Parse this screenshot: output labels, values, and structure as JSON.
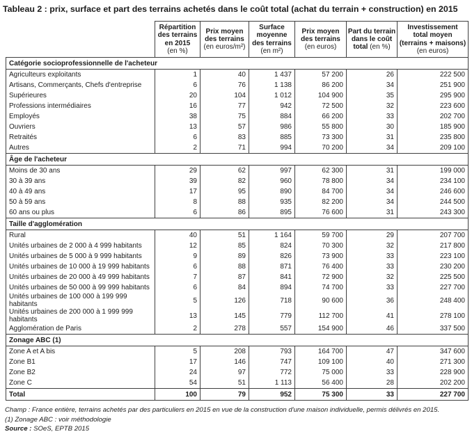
{
  "title": "Tableau 2 : prix, surface et part des terrains achetés dans le coût total (achat du terrain + construction) en 2015",
  "table": {
    "header": {
      "columns": [
        {
          "name": "repartition-terrains",
          "lines": [
            [
              {
                "t": "Répartition",
                "b": true
              }
            ],
            [
              {
                "t": "des terrains",
                "b": true
              }
            ],
            [
              {
                "t": "en 2015",
                "b": true
              }
            ],
            [
              {
                "t": "(en %)",
                "b": false
              }
            ]
          ]
        },
        {
          "name": "prix-moyen-m2",
          "lines": [
            [
              {
                "t": "Prix moyen",
                "b": true
              }
            ],
            [
              {
                "t": "des terrains",
                "b": true
              }
            ],
            [
              {
                "t": "(en euros/m²)",
                "b": false
              }
            ]
          ]
        },
        {
          "name": "surface-moyenne",
          "lines": [
            [
              {
                "t": "Surface",
                "b": true
              }
            ],
            [
              {
                "t": "moyenne",
                "b": true
              }
            ],
            [
              {
                "t": "des terrains",
                "b": true
              }
            ],
            [
              {
                "t": "(en m²)",
                "b": false
              }
            ]
          ]
        },
        {
          "name": "prix-moyen-euros",
          "lines": [
            [
              {
                "t": "Prix moyen",
                "b": true
              }
            ],
            [
              {
                "t": "des terrains",
                "b": true
              }
            ],
            [
              {
                "t": "(en euros)",
                "b": false
              }
            ]
          ]
        },
        {
          "name": "part-terrain-cout",
          "lines": [
            [
              {
                "t": "Part du terrain",
                "b": true
              }
            ],
            [
              {
                "t": "dans le coût",
                "b": true
              }
            ],
            [
              {
                "t": "total ",
                "b": true
              },
              {
                "t": "(en %)",
                "b": false
              }
            ]
          ]
        },
        {
          "name": "investissement-total",
          "lines": [
            [
              {
                "t": "Investissement",
                "b": true
              }
            ],
            [
              {
                "t": "total moyen",
                "b": true
              }
            ],
            [
              {
                "t": "(terrains + maisons)",
                "b": true
              }
            ],
            [
              {
                "t": "(en euros)",
                "b": false
              }
            ]
          ]
        }
      ]
    },
    "sections": [
      {
        "label": "Catégorie socioprofessionnelle de l'acheteur",
        "rows": [
          {
            "label": "Agriculteurs exploitants",
            "values": [
              "1",
              "40",
              "1 437",
              "57 200",
              "26",
              "222 500"
            ]
          },
          {
            "label": "Artisans, Commerçants, Chefs d'entreprise",
            "values": [
              "6",
              "76",
              "1 138",
              "86 200",
              "34",
              "251 900"
            ]
          },
          {
            "label": "Supérieures",
            "values": [
              "20",
              "104",
              "1 012",
              "104 900",
              "35",
              "295 900"
            ]
          },
          {
            "label": "Professions intermédiaires",
            "values": [
              "16",
              "77",
              "942",
              "72 500",
              "32",
              "223 600"
            ]
          },
          {
            "label": "Employés",
            "values": [
              "38",
              "75",
              "884",
              "66 200",
              "33",
              "202 700"
            ]
          },
          {
            "label": "Ouvriers",
            "values": [
              "13",
              "57",
              "986",
              "55 800",
              "30",
              "185 900"
            ]
          },
          {
            "label": "Retraités",
            "values": [
              "6",
              "83",
              "885",
              "73 300",
              "31",
              "235 800"
            ]
          },
          {
            "label": "Autres",
            "values": [
              "2",
              "71",
              "994",
              "70 200",
              "34",
              "209 100"
            ]
          }
        ]
      },
      {
        "label": "Âge de l'acheteur",
        "rows": [
          {
            "label": "Moins de 30 ans",
            "values": [
              "29",
              "62",
              "997",
              "62 300",
              "31",
              "199 000"
            ]
          },
          {
            "label": "30 à 39 ans",
            "values": [
              "39",
              "82",
              "960",
              "78 800",
              "34",
              "234 100"
            ]
          },
          {
            "label": "40 à 49 ans",
            "values": [
              "17",
              "95",
              "890",
              "84 700",
              "34",
              "246 600"
            ]
          },
          {
            "label": "50 à 59 ans",
            "values": [
              "8",
              "88",
              "935",
              "82 200",
              "34",
              "244 500"
            ]
          },
          {
            "label": "60 ans ou plus",
            "values": [
              "6",
              "86",
              "895",
              "76 600",
              "31",
              "243 300"
            ]
          }
        ]
      },
      {
        "label": "Taille d'agglomération",
        "rows": [
          {
            "label": "Rural",
            "values": [
              "40",
              "51",
              "1 164",
              "59 700",
              "29",
              "207 700"
            ]
          },
          {
            "label": "Unités urbaines de 2 000 à 4 999 habitants",
            "values": [
              "12",
              "85",
              "824",
              "70 300",
              "32",
              "217 800"
            ]
          },
          {
            "label": "Unités urbaines de 5 000 à 9 999 habitants",
            "values": [
              "9",
              "89",
              "826",
              "73 900",
              "33",
              "223 100"
            ]
          },
          {
            "label": "Unités urbaines de 10 000 à 19 999 habitants",
            "values": [
              "6",
              "88",
              "871",
              "76 400",
              "33",
              "230 200"
            ]
          },
          {
            "label": "Unités urbaines de 20 000 à 49 999 habitants",
            "values": [
              "7",
              "87",
              "841",
              "72 900",
              "32",
              "225 500"
            ]
          },
          {
            "label": "Unités urbaines de 50 000 à 99 999 habitants",
            "values": [
              "6",
              "84",
              "894",
              "74 700",
              "33",
              "227 700"
            ]
          },
          {
            "label": "Unités urbaines de 100 000 à 199 999 habitants",
            "values": [
              "5",
              "126",
              "718",
              "90 600",
              "36",
              "248 400"
            ]
          },
          {
            "label": "Unités urbaines de 200 000 à 1 999 999 habitants",
            "values": [
              "13",
              "145",
              "779",
              "112 700",
              "41",
              "278 100"
            ]
          },
          {
            "label": "Agglomération de Paris",
            "values": [
              "2",
              "278",
              "557",
              "154 900",
              "46",
              "337 500"
            ]
          }
        ]
      },
      {
        "label": "Zonage ABC (1)",
        "rows": [
          {
            "label": "Zone A et A bis",
            "values": [
              "5",
              "208",
              "793",
              "164 700",
              "47",
              "347 600"
            ]
          },
          {
            "label": "Zone B1",
            "values": [
              "17",
              "146",
              "747",
              "109 100",
              "40",
              "271 300"
            ]
          },
          {
            "label": "Zone B2",
            "values": [
              "24",
              "97",
              "772",
              "75 000",
              "33",
              "228 900"
            ]
          },
          {
            "label": "Zone C",
            "values": [
              "54",
              "51",
              "1 113",
              "56 400",
              "28",
              "202 200"
            ]
          }
        ]
      }
    ],
    "total": {
      "label": "Total",
      "values": [
        "100",
        "79",
        "952",
        "75 300",
        "33",
        "227 700"
      ]
    }
  },
  "footer": {
    "champ": "Champ : France entière, terrains achetés par des particuliers en 2015 en vue de la construction d'une maison individuelle, permis délivrés en 2015.",
    "note1": "(1) Zonage ABC : voir méthodologie",
    "source_label": "Source :",
    "source_text": "SOeS, EPTB 2015"
  },
  "colors": {
    "border": "#3e3e3e",
    "text": "#1c1c1c",
    "background": "#ffffff"
  }
}
